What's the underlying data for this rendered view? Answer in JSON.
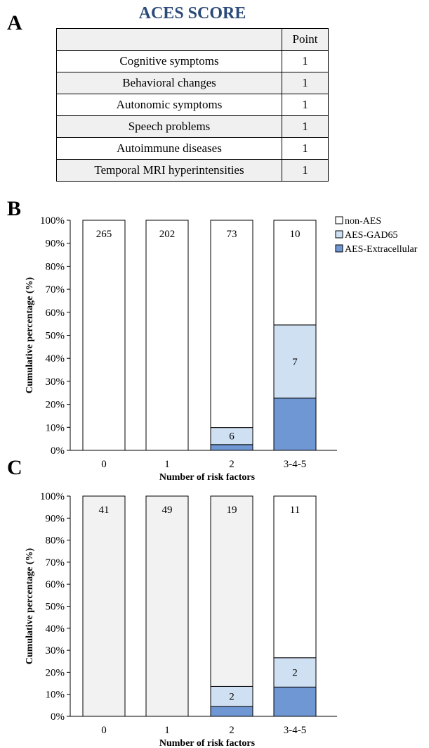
{
  "panels": {
    "a": "A",
    "b": "B",
    "c": "C"
  },
  "table": {
    "title": "ACES SCORE",
    "header": [
      "",
      "Point"
    ],
    "rows": [
      [
        "Cognitive symptoms",
        "1"
      ],
      [
        "Behavioral changes",
        "1"
      ],
      [
        "Autonomic symptoms",
        "1"
      ],
      [
        "Speech problems",
        "1"
      ],
      [
        "Autoimmune diseases",
        "1"
      ],
      [
        "Temporal MRI hyperintensities",
        "1"
      ]
    ]
  },
  "colors": {
    "non_aes": "#ffffff",
    "non_aes_c": "#f2f2f2",
    "gad65": "#cfe0f3",
    "extracellular": "#6f97d3"
  },
  "chart_data": [
    {
      "type": "bar",
      "stacked": true,
      "panel": "B",
      "categories": [
        "0",
        "1",
        "2",
        "3-4-5"
      ],
      "series": [
        {
          "name": "AES-Extracellular",
          "values": [
            0,
            0,
            2.5,
            22.7
          ]
        },
        {
          "name": "AES-GAD65",
          "values": [
            0,
            0,
            7.4,
            31.8
          ]
        },
        {
          "name": "non-AES",
          "values": [
            100,
            100,
            90.1,
            45.5
          ]
        }
      ],
      "labels": [
        {
          "category": "0",
          "series": "non-AES",
          "text": "265"
        },
        {
          "category": "1",
          "series": "non-AES",
          "text": "202"
        },
        {
          "category": "2",
          "series": "non-AES",
          "text": "73"
        },
        {
          "category": "3-4-5",
          "series": "non-AES",
          "text": "10"
        },
        {
          "category": "2",
          "series": "AES-GAD65",
          "text": "6"
        },
        {
          "category": "3-4-5",
          "series": "AES-GAD65",
          "text": "7"
        }
      ],
      "xlabel": "Number of risk factors",
      "ylabel": "Cumulative percentage  (%)",
      "ylim": [
        0,
        100
      ],
      "yticks": [
        "0%",
        "10%",
        "20%",
        "30%",
        "40%",
        "50%",
        "60%",
        "70%",
        "80%",
        "90%",
        "100%"
      ],
      "legend": [
        "non-AES",
        "AES-GAD65",
        "AES-Extracellular"
      ],
      "legend_position": "right"
    },
    {
      "type": "bar",
      "stacked": true,
      "panel": "C",
      "categories": [
        "0",
        "1",
        "2",
        "3-4-5"
      ],
      "series": [
        {
          "name": "AES-Extracellular",
          "values": [
            0,
            0,
            4.5,
            13.3
          ]
        },
        {
          "name": "AES-GAD65",
          "values": [
            0,
            0,
            9.1,
            13.3
          ]
        },
        {
          "name": "non-AES",
          "values": [
            100,
            100,
            86.4,
            73.4
          ]
        }
      ],
      "labels": [
        {
          "category": "0",
          "series": "non-AES",
          "text": "41"
        },
        {
          "category": "1",
          "series": "non-AES",
          "text": "49"
        },
        {
          "category": "2",
          "series": "non-AES",
          "text": "19"
        },
        {
          "category": "3-4-5",
          "series": "non-AES",
          "text": "11"
        },
        {
          "category": "2",
          "series": "AES-GAD65",
          "text": "2"
        },
        {
          "category": "3-4-5",
          "series": "AES-GAD65",
          "text": "2"
        }
      ],
      "xlabel": "Number of risk factors",
      "ylabel": "Cumulative percentage  (%)",
      "ylim": [
        0,
        100
      ],
      "yticks": [
        "0%",
        "10%",
        "20%",
        "30%",
        "40%",
        "50%",
        "60%",
        "70%",
        "80%",
        "90%",
        "100%"
      ]
    }
  ]
}
